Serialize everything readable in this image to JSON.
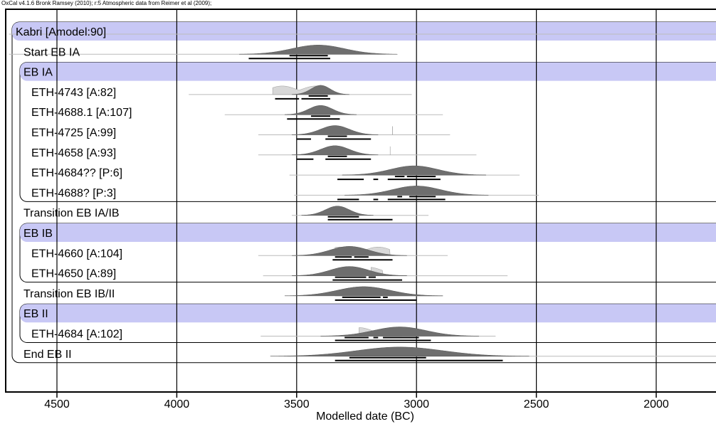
{
  "header_note": "OxCal v4.1.6 Bronk Ramsey (2010); r:5 Atmospheric data from Reimer et al (2009);",
  "chart_data": {
    "type": "oxcal-multiplot",
    "xlabel": "Modelled date (BC)",
    "x_ticks": [
      4500,
      4000,
      3500,
      3000,
      2500,
      2000
    ],
    "xlim": [
      4700,
      1750
    ],
    "grid": "vertical lines at ticks",
    "colors": {
      "band": "#c8c8f5",
      "posterior": "#6e6e6e",
      "prior": "#d8d8d8",
      "frame": "#000000"
    },
    "rows": [
      {
        "label": "Kabri [Amodel:90]",
        "kind": "model-header",
        "line": [
          4700,
          1750
        ]
      },
      {
        "label": "Start EB IA",
        "kind": "boundary",
        "line": [
          4700,
          3130
        ],
        "peak": 3410,
        "spread": 110,
        "range68": [
          [
            3530,
            3370
          ]
        ],
        "range95": [
          [
            3700,
            3360
          ]
        ]
      },
      {
        "label": "EB IA",
        "kind": "phase-header"
      },
      {
        "label": "ETH-4743 [A:82]",
        "kind": "date",
        "line": [
          3950,
          3020
        ],
        "prior_peaks": [
          [
            3560,
            60
          ],
          [
            3420,
            60
          ]
        ],
        "peak": 3400,
        "spread": 40,
        "range68": [
          [
            3450,
            3370
          ]
        ],
        "range95": [
          [
            3590,
            3490
          ],
          [
            3480,
            3360
          ]
        ]
      },
      {
        "label": "ETH-4688.1 [A:107]",
        "kind": "date",
        "line": [
          3800,
          2890
        ],
        "prior_peaks": [
          [
            3540,
            60
          ],
          [
            3380,
            60
          ],
          [
            3200,
            50
          ]
        ],
        "peak": 3400,
        "spread": 50,
        "range68": [
          [
            3440,
            3360
          ]
        ],
        "range95": [
          [
            3540,
            3320
          ]
        ]
      },
      {
        "label": "ETH-4725 [A:99]",
        "kind": "date",
        "line": [
          3660,
          2860
        ],
        "prior_peaks": [
          [
            3310,
            70
          ],
          [
            3100,
            60
          ],
          [
            2950,
            50
          ]
        ],
        "peak": 3340,
        "spread": 60,
        "range68": [
          [
            3370,
            3290
          ]
        ],
        "range95": [
          [
            3500,
            3440
          ],
          [
            3380,
            3190
          ]
        ]
      },
      {
        "label": "ETH-4658 [A:93]",
        "kind": "date",
        "line": [
          3660,
          2750
        ],
        "prior_peaks": [
          [
            3320,
            70
          ],
          [
            3120,
            70
          ],
          [
            2960,
            50
          ]
        ],
        "peak": 3340,
        "spread": 60,
        "range68": [
          [
            3370,
            3290
          ]
        ],
        "range95": [
          [
            3500,
            3430
          ],
          [
            3380,
            3190
          ]
        ]
      },
      {
        "label": "ETH-4684?? [P:6]",
        "kind": "date",
        "line": [
          3530,
          2570
        ],
        "peak": 3010,
        "spread": 100,
        "range68": [
          [
            3090,
            3050
          ],
          [
            3040,
            2920
          ]
        ],
        "range95": [
          [
            3330,
            3220
          ],
          [
            3180,
            3160
          ],
          [
            3120,
            2900
          ]
        ]
      },
      {
        "label": "ETH-4688? [P:3]",
        "kind": "date",
        "line": [
          3510,
          2490
        ],
        "peak": 3000,
        "spread": 100,
        "range68": [
          [
            3080,
            3060
          ],
          [
            3030,
            2920
          ]
        ],
        "range95": [
          [
            3330,
            3240
          ],
          [
            3180,
            3160
          ],
          [
            3120,
            2880
          ]
        ]
      },
      {
        "label": "Transition EB IA/IB",
        "kind": "boundary",
        "line": [
          3520,
          2950
        ],
        "peak": 3330,
        "spread": 50,
        "range68": [
          [
            3370,
            3240
          ]
        ],
        "range95": [
          [
            3370,
            3100
          ]
        ]
      },
      {
        "label": "EB IB",
        "kind": "phase-header"
      },
      {
        "label": "ETH-4660 [A:104]",
        "kind": "date",
        "line": [
          3660,
          2870
        ],
        "prior_peaks": [
          [
            3320,
            70
          ],
          [
            3160,
            60
          ]
        ],
        "peak": 3280,
        "spread": 80,
        "range68": [
          [
            3340,
            3270
          ],
          [
            3260,
            3200
          ]
        ],
        "range95": [
          [
            3350,
            3100
          ]
        ]
      },
      {
        "label": "ETH-4650 [A:89]",
        "kind": "date",
        "line": [
          3640,
          2620
        ],
        "prior_peaks": [
          [
            3320,
            60
          ],
          [
            3200,
            60
          ],
          [
            3010,
            60
          ]
        ],
        "peak": 3280,
        "spread": 80,
        "range68": [
          [
            3340,
            3210
          ],
          [
            3200,
            3170
          ]
        ],
        "range95": [
          [
            3350,
            3060
          ]
        ]
      },
      {
        "label": "Transition EB IB/II",
        "kind": "boundary",
        "line": [
          3340,
          2890
        ],
        "peak": 3220,
        "spread": 110,
        "range68": [
          [
            3310,
            3150
          ],
          [
            3140,
            3120
          ]
        ],
        "range95": [
          [
            3340,
            3000
          ]
        ]
      },
      {
        "label": "EB II",
        "kind": "phase-header"
      },
      {
        "label": "ETH-4684 [A:102]",
        "kind": "date",
        "line": [
          3650,
          2670
        ],
        "prior_peaks": [
          [
            3240,
            60
          ],
          [
            3060,
            60
          ]
        ],
        "peak": 3070,
        "spread": 110,
        "range68": [
          [
            3300,
            3200
          ],
          [
            3180,
            3160
          ],
          [
            3140,
            2990
          ]
        ],
        "range95": [
          [
            3340,
            2940
          ]
        ]
      },
      {
        "label": "End EB II",
        "kind": "boundary",
        "line": [
          3340,
          1750
        ],
        "peak": 3070,
        "spread": 180,
        "range68": [
          [
            3280,
            2960
          ]
        ],
        "range95": [
          [
            3340,
            2640
          ]
        ]
      }
    ]
  }
}
